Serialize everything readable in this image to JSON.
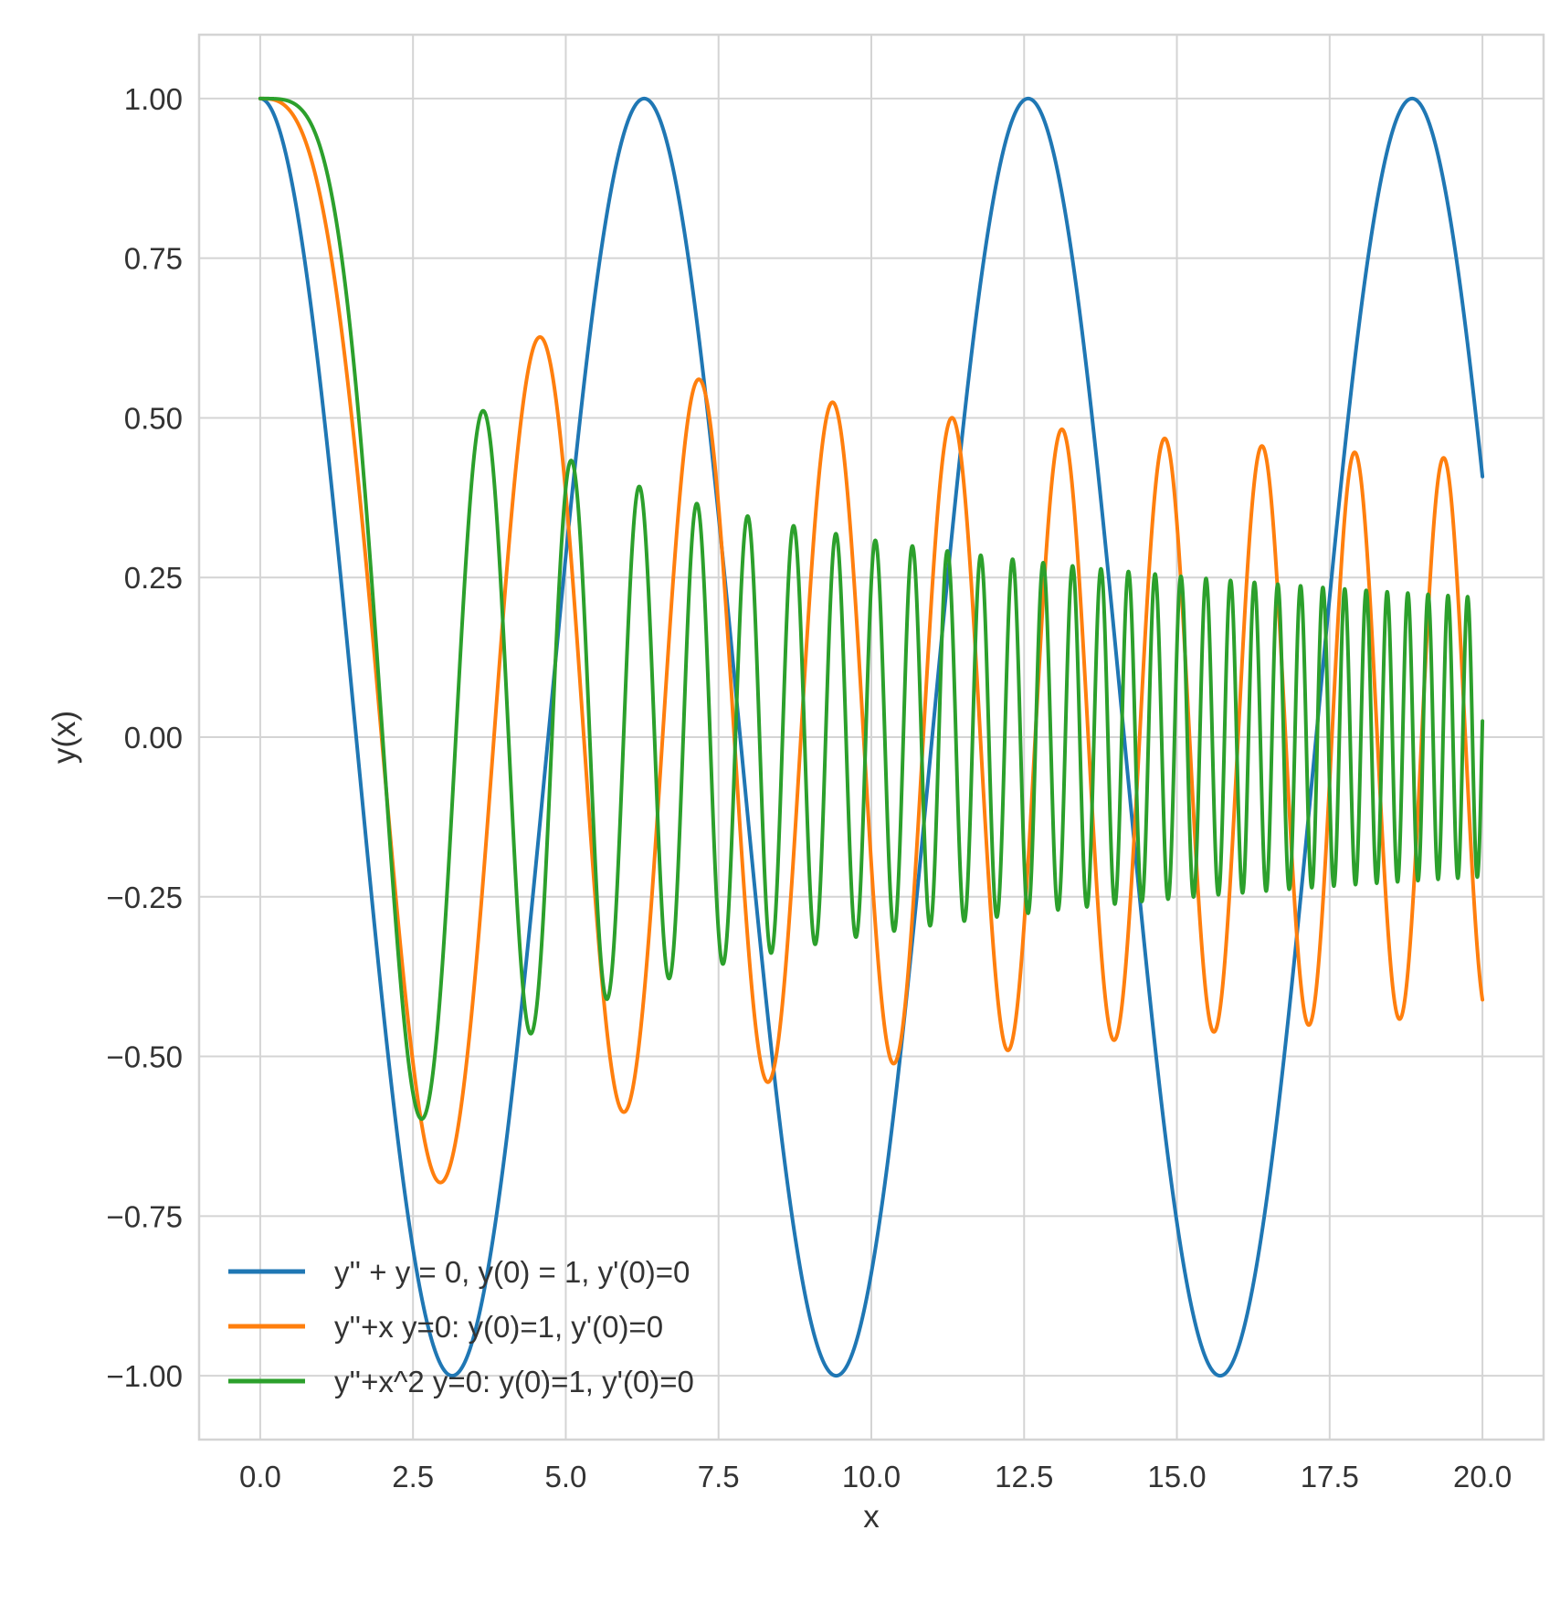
{
  "chart_data": {
    "type": "line",
    "title": "",
    "xlabel": "x",
    "ylabel": "y(x)",
    "xlim": [
      -1.0,
      21.0
    ],
    "ylim": [
      -1.1,
      1.1
    ],
    "grid": true,
    "legend_position": "lower-left",
    "x_ticks": [
      "0.0",
      "2.5",
      "5.0",
      "7.5",
      "10.0",
      "12.5",
      "15.0",
      "17.5",
      "20.0"
    ],
    "y_ticks": [
      "−1.00",
      "−0.75",
      "−0.50",
      "−0.25",
      "0.00",
      "0.25",
      "0.50",
      "0.75",
      "1.00"
    ],
    "x_range": [
      0,
      20
    ],
    "series": [
      {
        "name": "y'' + y = 0, y(0) = 1, y'(0)=0",
        "color": "#1f77b4",
        "equation": "y'' + y = 0",
        "initial_conditions": {
          "y0": 1,
          "dy0": 0
        }
      },
      {
        "name": "y''+x y=0: y(0)=1, y'(0)=0",
        "color": "#ff7f0e",
        "equation": "y'' + x y = 0",
        "initial_conditions": {
          "y0": 1,
          "dy0": 0
        }
      },
      {
        "name": "y''+x^2 y=0: y(0)=1, y'(0)=0",
        "color": "#2ca02c",
        "equation": "y'' + x^2 y = 0",
        "initial_conditions": {
          "y0": 1,
          "dy0": 0
        }
      }
    ]
  }
}
